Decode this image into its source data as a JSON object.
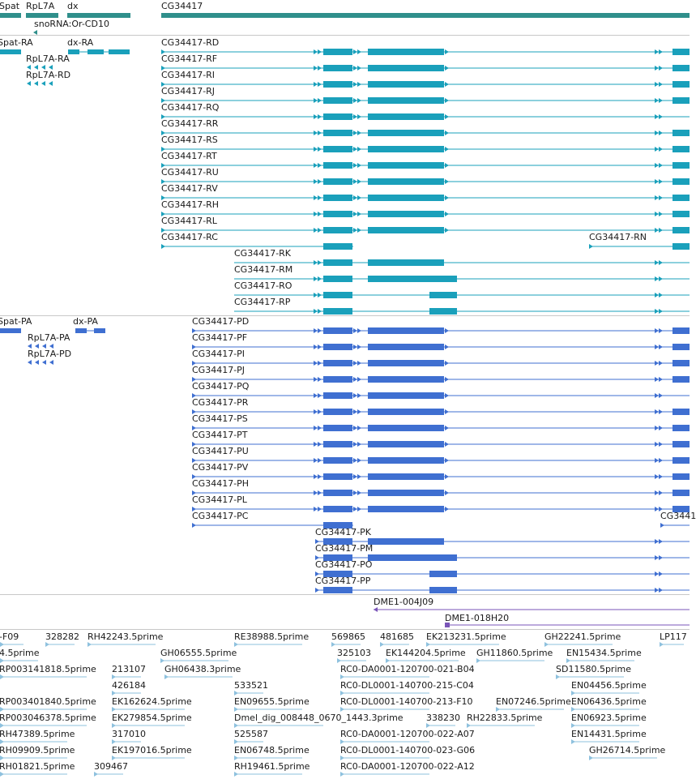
{
  "colors": {
    "gene": "#2f8f8b",
    "mrna": "#1aa0bb",
    "protein": "#3f6fd1",
    "clone": "#7a55b8",
    "est": "#8ec1de",
    "separator": "#c8c8c8",
    "text": "#1a1a1a"
  },
  "tracks": {
    "genes": [
      "Spat",
      "RpL7A",
      "dx",
      "CG34417",
      "snoRNA:Or-CD10"
    ],
    "mrnas": [
      "Spat-RA",
      "dx-RA",
      "RpL7A-RA",
      "RpL7A-RD",
      "CG34417-RD",
      "CG34417-RF",
      "CG34417-RI",
      "CG34417-RJ",
      "CG34417-RQ",
      "CG34417-RR",
      "CG34417-RS",
      "CG34417-RT",
      "CG34417-RU",
      "CG34417-RV",
      "CG34417-RH",
      "CG34417-RL",
      "CG34417-RC",
      "CG34417-RN",
      "CG34417-RK",
      "CG34417-RM",
      "CG34417-RO",
      "CG34417-RP"
    ],
    "proteins": [
      "Spat-PA",
      "dx-PA",
      "RpL7A-PA",
      "RpL7A-PD",
      "CG34417-PD",
      "CG34417-PF",
      "CG34417-PI",
      "CG34417-PJ",
      "CG34417-PQ",
      "CG34417-PR",
      "CG34417-PS",
      "CG34417-PT",
      "CG34417-PU",
      "CG34417-PV",
      "CG34417-PH",
      "CG34417-PL",
      "CG34417-PC",
      "CG3441",
      "CG34417-PK",
      "CG34417-PM",
      "CG34417-PO",
      "CG34417-PP"
    ],
    "clones": [
      "DME1-004J09",
      "DME1-018H20"
    ],
    "ests": [
      "-F09",
      "328282",
      "RH42243.5prime",
      "RE38988.5prime",
      "569865",
      "481685",
      "EK213231.5prime",
      "GH22241.5prime",
      "LP117",
      "4.5prime",
      "GH06555.5prime",
      "325103",
      "EK144204.5prime",
      "GH11860.5prime",
      "EN15434.5prime",
      "RP003141818.5prime",
      "213107",
      "GH06438.3prime",
      "RC0-DA0001-120700-021-B04",
      "SD11580.5prime",
      "426184",
      "533521",
      "RC0-DL0001-140700-215-C04",
      "EN04456.5prime",
      "RP003401840.5prime",
      "EK162624.5prime",
      "EN09655.5prime",
      "RC0-DL0001-140700-213-F10",
      "EN07246.5prime",
      "EN06436.5prime",
      "RP003046378.5prime",
      "EK279854.5prime",
      "Dmel_dig_008448_0670_1443.3prime",
      "338230",
      "RH22833.5prime",
      "EN06923.5prime",
      "RH47389.5prime",
      "317010",
      "525587",
      "RC0-DA0001-120700-022-A07",
      "EN14431.5prime",
      "RH09909.5prime",
      "EK197016.5prime",
      "EN06748.5prime",
      "RC0-DL0001-140700-023-G06",
      "GH26714.5prime",
      "RH01821.5prime",
      "309467",
      "RH19461.5prime",
      "RC0-DA0001-120700-022-A12"
    ]
  }
}
